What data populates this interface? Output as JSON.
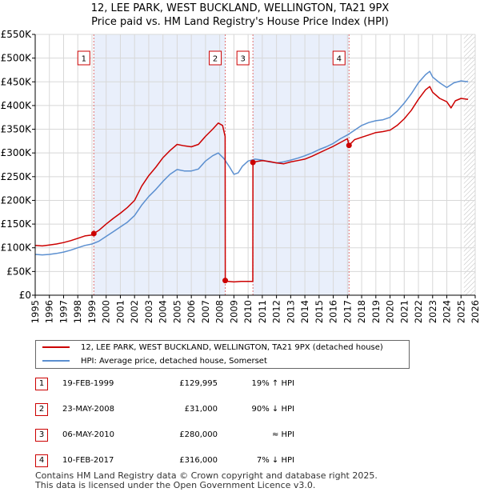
{
  "title_line1": "12, LEE PARK, WEST BUCKLAND, WELLINGTON, TA21 9PX",
  "title_line2": "Price paid vs. HM Land Registry's House Price Index (HPI)",
  "chart_data": {
    "type": "line",
    "title": "12, LEE PARK, WEST BUCKLAND, WELLINGTON, TA21 9PX",
    "subtitle": "Price paid vs. HM Land Registry's House Price Index (HPI)",
    "xlabel": "",
    "ylabel": "",
    "xlim": [
      1995,
      2026
    ],
    "ylim": [
      0,
      550000
    ],
    "grid": true,
    "legend_position": "below",
    "y_ticks": [
      0,
      50000,
      100000,
      150000,
      200000,
      250000,
      300000,
      350000,
      400000,
      450000,
      500000,
      550000
    ],
    "y_tick_labels": [
      "£0",
      "£50K",
      "£100K",
      "£150K",
      "£200K",
      "£250K",
      "£300K",
      "£350K",
      "£400K",
      "£450K",
      "£500K",
      "£550K"
    ],
    "x_ticks": [
      1995,
      1996,
      1997,
      1998,
      1999,
      2000,
      2001,
      2002,
      2003,
      2004,
      2005,
      2006,
      2007,
      2008,
      2009,
      2010,
      2011,
      2012,
      2013,
      2014,
      2015,
      2016,
      2017,
      2018,
      2019,
      2020,
      2021,
      2022,
      2023,
      2024,
      2025,
      2026
    ],
    "x_tick_labels": [
      "1995",
      "1996",
      "1997",
      "1998",
      "1999",
      "2000",
      "2001",
      "2002",
      "2003",
      "2004",
      "2005",
      "2006",
      "2007",
      "2008",
      "2009",
      "2010",
      "2011",
      "2012",
      "2013",
      "2014",
      "2015",
      "2016",
      "2017",
      "2018",
      "2019",
      "2020",
      "2021",
      "2022",
      "2023",
      "2024",
      "2025",
      "2026"
    ],
    "shaded_ranges": [
      [
        1999.13,
        2008.39
      ],
      [
        2010.34,
        2017.11
      ]
    ],
    "hatched_from": 2025.2,
    "series": [
      {
        "name": "12, LEE PARK, WEST BUCKLAND, WELLINGTON, TA21 9PX (detached house)",
        "color": "#cc0000",
        "x": [
          1995.0,
          1995.5,
          1996.0,
          1996.5,
          1997.0,
          1997.5,
          1998.0,
          1998.5,
          1999.0,
          1999.13,
          1999.5,
          2000.0,
          2000.5,
          2001.0,
          2001.5,
          2002.0,
          2002.5,
          2003.0,
          2003.5,
          2004.0,
          2004.5,
          2005.0,
          2005.5,
          2006.0,
          2006.5,
          2007.0,
          2007.5,
          2007.9,
          2008.2,
          2008.38,
          2008.39,
          2008.6,
          2009.0,
          2009.5,
          2010.0,
          2010.33,
          2010.34,
          2010.6,
          2011.0,
          2011.5,
          2012.0,
          2012.5,
          2013.0,
          2013.5,
          2014.0,
          2014.5,
          2015.0,
          2015.5,
          2016.0,
          2016.5,
          2017.0,
          2017.11,
          2017.5,
          2018.0,
          2018.5,
          2019.0,
          2019.5,
          2020.0,
          2020.5,
          2021.0,
          2021.5,
          2022.0,
          2022.5,
          2022.8,
          2023.0,
          2023.5,
          2024.0,
          2024.3,
          2024.6,
          2025.0,
          2025.5
        ],
        "values": [
          105000,
          104000,
          106000,
          108000,
          111000,
          115000,
          120000,
          125000,
          127000,
          129995,
          137000,
          150000,
          162000,
          173000,
          185000,
          200000,
          230000,
          252000,
          270000,
          290000,
          305000,
          318000,
          315000,
          313000,
          318000,
          335000,
          350000,
          363000,
          358000,
          335000,
          31000,
          29000,
          28000,
          29000,
          29000,
          29000,
          280000,
          282000,
          284000,
          282000,
          279000,
          277000,
          281000,
          284000,
          287000,
          293000,
          300000,
          307000,
          314000,
          322000,
          330000,
          316000,
          328000,
          333000,
          338000,
          343000,
          345000,
          348000,
          358000,
          372000,
          390000,
          413000,
          433000,
          440000,
          428000,
          415000,
          408000,
          395000,
          410000,
          415000,
          413000
        ]
      },
      {
        "name": "HPI: Average price, detached house, Somerset",
        "color": "#5b8fd0",
        "x": [
          1995.0,
          1995.5,
          1996.0,
          1996.5,
          1997.0,
          1997.5,
          1998.0,
          1998.5,
          1999.0,
          1999.5,
          2000.0,
          2000.5,
          2001.0,
          2001.5,
          2002.0,
          2002.5,
          2003.0,
          2003.5,
          2004.0,
          2004.5,
          2005.0,
          2005.5,
          2006.0,
          2006.5,
          2007.0,
          2007.5,
          2007.9,
          2008.3,
          2008.7,
          2009.0,
          2009.3,
          2009.6,
          2010.0,
          2010.5,
          2011.0,
          2011.5,
          2012.0,
          2012.5,
          2013.0,
          2013.5,
          2014.0,
          2014.5,
          2015.0,
          2015.5,
          2016.0,
          2016.5,
          2017.0,
          2017.5,
          2018.0,
          2018.5,
          2019.0,
          2019.5,
          2020.0,
          2020.5,
          2021.0,
          2021.5,
          2022.0,
          2022.5,
          2022.8,
          2023.0,
          2023.5,
          2024.0,
          2024.5,
          2025.0,
          2025.5
        ],
        "values": [
          86000,
          85000,
          86000,
          88000,
          91000,
          95000,
          100000,
          105000,
          108000,
          114000,
          124000,
          134000,
          144000,
          154000,
          168000,
          190000,
          208000,
          223000,
          240000,
          255000,
          265000,
          262000,
          262000,
          266000,
          283000,
          294000,
          300000,
          288000,
          270000,
          255000,
          258000,
          272000,
          283000,
          287000,
          285000,
          281000,
          279000,
          281000,
          285000,
          289000,
          294000,
          300000,
          307000,
          313000,
          320000,
          330000,
          338000,
          348000,
          358000,
          364000,
          368000,
          370000,
          375000,
          388000,
          405000,
          425000,
          448000,
          465000,
          472000,
          460000,
          448000,
          438000,
          448000,
          452000,
          450000
        ]
      }
    ],
    "sales": [
      {
        "label": "1",
        "x": 1999.13,
        "value": 129995
      },
      {
        "label": "2",
        "x": 2008.39,
        "value": 31000
      },
      {
        "label": "3",
        "x": 2010.34,
        "value": 280000
      },
      {
        "label": "4",
        "x": 2017.11,
        "value": 316000
      }
    ]
  },
  "legend": {
    "property": "12, LEE PARK, WEST BUCKLAND, WELLINGTON, TA21 9PX (detached house)",
    "hpi": "HPI: Average price, detached house, Somerset",
    "property_color": "#cc0000",
    "hpi_color": "#5b8fd0"
  },
  "sales_table": [
    {
      "num": "1",
      "date": "19-FEB-1999",
      "price": "£129,995",
      "hpi": "19% ↑ HPI"
    },
    {
      "num": "2",
      "date": "23-MAY-2008",
      "price": "£31,000",
      "hpi": "90% ↓ HPI"
    },
    {
      "num": "3",
      "date": "06-MAY-2010",
      "price": "£280,000",
      "hpi": "≈ HPI"
    },
    {
      "num": "4",
      "date": "10-FEB-2017",
      "price": "£316,000",
      "hpi": "7% ↓ HPI"
    }
  ],
  "footer": {
    "line1": "Contains HM Land Registry data © Crown copyright and database right 2025.",
    "line2": "This data is licensed under the Open Government Licence v3.0."
  }
}
